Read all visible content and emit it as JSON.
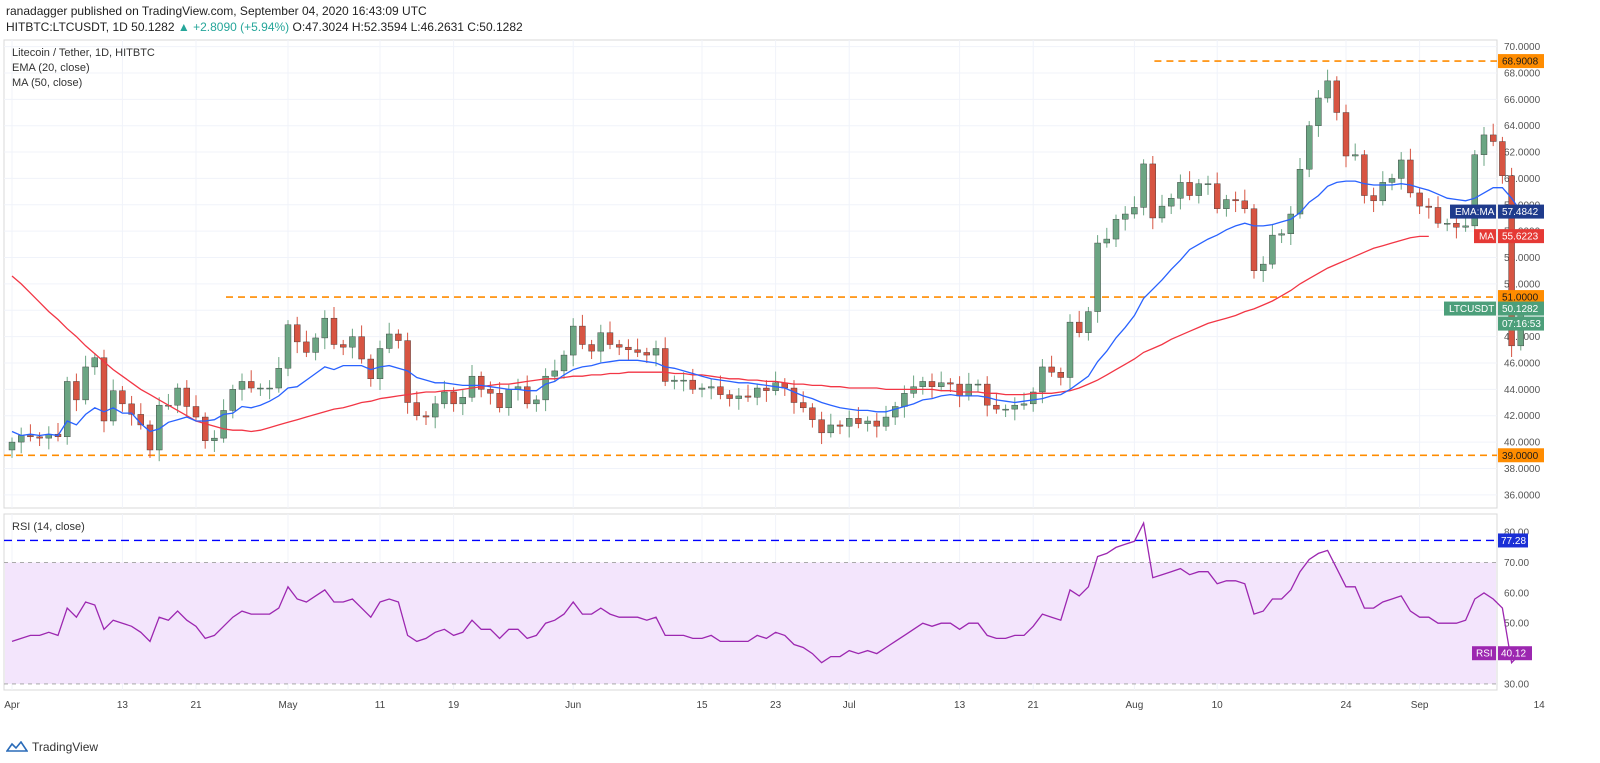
{
  "header": {
    "line1": "ranadagger published on TradingView.com, September 04, 2020 16:43:09 UTC",
    "symbol": "HITBTC:LTCUSDT, 1D",
    "last": "50.1282",
    "change": "▲ +2.8090 (+5.94%)",
    "ohlc": "O:47.3024 H:52.3594 L:46.2631 C:50.1282"
  },
  "footer": {
    "brand": "TradingView"
  },
  "chart_data": [
    {
      "type": "candlestick",
      "title": "Litecoin / Tether, 1D, HITBTC",
      "indicators": [
        "EMA (20, close)",
        "MA (50, close)"
      ],
      "ylim": [
        35,
        70.5
      ],
      "y_ticks": [
        36,
        38,
        40,
        42,
        44,
        46,
        48,
        50,
        52,
        54,
        56,
        58,
        60,
        62,
        64,
        66,
        68,
        70
      ],
      "x_ticks": [
        {
          "label": "Apr",
          "day": 0
        },
        {
          "label": "13",
          "day": 12
        },
        {
          "label": "21",
          "day": 20
        },
        {
          "label": "May",
          "day": 30
        },
        {
          "label": "11",
          "day": 40
        },
        {
          "label": "19",
          "day": 48
        },
        {
          "label": "Jun",
          "day": 61
        },
        {
          "label": "15",
          "day": 75
        },
        {
          "label": "23",
          "day": 83
        },
        {
          "label": "Jul",
          "day": 91
        },
        {
          "label": "13",
          "day": 103
        },
        {
          "label": "21",
          "day": 111
        },
        {
          "label": "Aug",
          "day": 122
        },
        {
          "label": "10",
          "day": 131
        },
        {
          "label": "24",
          "day": 145
        },
        {
          "label": "Sep",
          "day": 153
        },
        {
          "label": "14",
          "day": 166
        }
      ],
      "start_close": 39.4,
      "closes": [
        40.0,
        40.5,
        40.4,
        40.3,
        40.6,
        40.4,
        44.6,
        43.2,
        45.7,
        46.4,
        41.6,
        43.9,
        42.9,
        42.1,
        41.3,
        39.4,
        42.8,
        42.8,
        44.1,
        42.7,
        41.9,
        40.1,
        40.3,
        42.4,
        44.0,
        44.6,
        44.1,
        44.1,
        44.1,
        45.6,
        48.9,
        47.6,
        46.8,
        47.9,
        49.4,
        47.4,
        47.2,
        48.0,
        46.3,
        44.8,
        47.1,
        48.2,
        47.7,
        43.0,
        42.0,
        41.9,
        42.9,
        43.8,
        42.9,
        43.4,
        45.0,
        44.0,
        43.7,
        42.6,
        44.0,
        44.2,
        42.9,
        43.2,
        45.0,
        45.4,
        46.6,
        48.8,
        47.4,
        46.9,
        48.3,
        47.4,
        47.2,
        47.0,
        46.8,
        46.6,
        47.1,
        44.6,
        44.7,
        44.7,
        44.0,
        44.1,
        44.2,
        43.6,
        43.3,
        43.5,
        43.4,
        44.1,
        43.9,
        44.5,
        44.1,
        43.0,
        42.6,
        41.7,
        40.7,
        41.3,
        41.2,
        41.8,
        41.4,
        41.6,
        41.2,
        41.9,
        42.7,
        43.7,
        44.2,
        44.6,
        44.2,
        44.5,
        44.4,
        43.5,
        44.4,
        44.4,
        42.8,
        42.5,
        42.5,
        42.8,
        42.9,
        43.8,
        45.7,
        45.3,
        44.9,
        49.1,
        48.3,
        49.9,
        55.1,
        55.4,
        56.9,
        57.3,
        57.8,
        61.1,
        57.0,
        57.9,
        58.5,
        59.7,
        58.7,
        59.6,
        59.6,
        57.7,
        58.4,
        58.3,
        57.7,
        53.0,
        53.5,
        55.7,
        55.8,
        57.3,
        60.7,
        64.0,
        66.1,
        67.4,
        65.0,
        61.7,
        61.8,
        58.7,
        58.3,
        59.7,
        60.0,
        61.4,
        58.9,
        57.9,
        57.8,
        56.6,
        56.6,
        56.3,
        56.4,
        61.8,
        63.3,
        62.8,
        60.2,
        47.3,
        50.1
      ],
      "ema_20": [
        40.8,
        40.5,
        40.6,
        40.5,
        40.6,
        40.5,
        41.6,
        41.3,
        42.1,
        42.6,
        42.3,
        42.6,
        42.2,
        42.2,
        41.4,
        40.8,
        41.0,
        41.5,
        41.7,
        41.9,
        41.6,
        41.6,
        41.7,
        42.1,
        42.2,
        42.7,
        42.6,
        42.8,
        43.1,
        43.5,
        44.1,
        44.2,
        44.7,
        45.2,
        45.7,
        45.5,
        45.8,
        45.8,
        45.8,
        45.5,
        45.7,
        45.8,
        45.6,
        45.4,
        44.9,
        44.7,
        44.5,
        44.5,
        44.4,
        44.3,
        44.3,
        44.3,
        44.2,
        44.1,
        44.0,
        44.0,
        43.9,
        43.9,
        44.4,
        44.6,
        45.1,
        45.5,
        45.7,
        45.8,
        46.0,
        46.1,
        46.2,
        46.2,
        46.2,
        46.1,
        46.0,
        45.7,
        45.6,
        45.4,
        45.2,
        45.0,
        44.8,
        44.7,
        44.6,
        44.5,
        44.5,
        44.4,
        44.3,
        44.2,
        44.1,
        43.8,
        43.5,
        43.3,
        43.0,
        42.8,
        42.6,
        42.5,
        42.4,
        42.4,
        42.3,
        42.3,
        42.5,
        42.7,
        42.9,
        43.2,
        43.3,
        43.5,
        43.6,
        43.5,
        43.5,
        43.5,
        43.4,
        43.2,
        43.1,
        43.0,
        43.1,
        43.2,
        43.3,
        43.5,
        43.6,
        44.0,
        44.5,
        45.0,
        46.1,
        46.9,
        47.9,
        48.7,
        49.6,
        50.9,
        51.6,
        52.3,
        53.1,
        53.8,
        54.6,
        55.0,
        55.4,
        55.7,
        56.1,
        56.4,
        56.6,
        56.4,
        56.4,
        56.5,
        56.7,
        56.9,
        57.4,
        58.2,
        58.7,
        59.4,
        59.7,
        59.8,
        59.8,
        59.6,
        59.5,
        59.5,
        59.5,
        59.6,
        59.5,
        59.3,
        59.1,
        58.8,
        58.5,
        58.4,
        58.3,
        58.5,
        58.9,
        59.3,
        59.3,
        58.5,
        57.5
      ],
      "ma_50": [
        52.6,
        52.0,
        51.3,
        50.6,
        49.9,
        49.3,
        48.6,
        48.0,
        47.3,
        46.7,
        46.1,
        45.5,
        45.0,
        44.5,
        44.0,
        43.6,
        43.2,
        42.8,
        42.4,
        42.0,
        41.6,
        41.4,
        41.2,
        41.0,
        40.9,
        40.9,
        40.8,
        40.9,
        41.1,
        41.3,
        41.5,
        41.7,
        41.9,
        42.1,
        42.3,
        42.5,
        42.6,
        42.8,
        43.0,
        43.1,
        43.3,
        43.4,
        43.5,
        43.6,
        43.7,
        43.8,
        43.8,
        43.9,
        43.9,
        44.0,
        44.1,
        44.2,
        44.3,
        44.4,
        44.4,
        44.5,
        44.6,
        44.7,
        44.8,
        44.8,
        44.9,
        45.0,
        45.0,
        45.1,
        45.1,
        45.2,
        45.2,
        45.3,
        45.3,
        45.3,
        45.3,
        45.3,
        45.2,
        45.2,
        45.1,
        45.1,
        45.0,
        44.9,
        44.8,
        44.8,
        44.7,
        44.7,
        44.6,
        44.6,
        44.5,
        44.4,
        44.4,
        44.3,
        44.3,
        44.2,
        44.2,
        44.1,
        44.1,
        44.1,
        44.1,
        44.0,
        44.0,
        44.0,
        44.0,
        44.0,
        44.0,
        43.9,
        43.9,
        43.8,
        43.8,
        43.8,
        43.7,
        43.7,
        43.6,
        43.6,
        43.6,
        43.7,
        43.7,
        43.7,
        43.8,
        43.9,
        44.1,
        44.4,
        44.7,
        45.1,
        45.5,
        45.9,
        46.3,
        46.8,
        47.1,
        47.4,
        47.8,
        48.1,
        48.4,
        48.7,
        49.0,
        49.2,
        49.4,
        49.6,
        49.9,
        50.1,
        50.4,
        50.7,
        51.1,
        51.5,
        52.0,
        52.4,
        52.8,
        53.2,
        53.5,
        53.8,
        54.1,
        54.4,
        54.7,
        54.9,
        55.1,
        55.3,
        55.5,
        55.6,
        55.6
      ],
      "horizontal_levels": [
        {
          "value": 68.9008,
          "label": "68.9008"
        },
        {
          "value": 51.0,
          "label": "51.0000"
        },
        {
          "value": 39.0,
          "label": "39.0000"
        }
      ],
      "price_labels": [
        {
          "text": "EMA:MA",
          "value": "57.4842",
          "color": "#1f3b8c"
        },
        {
          "text": "MA",
          "value": "55.6223",
          "color": "#e53935"
        },
        {
          "text": "LTCUSDT",
          "value": "50.1282",
          "color": "#4c9f7a"
        },
        {
          "text": "",
          "value": "07:16:53",
          "color": "#4c9f7a"
        }
      ],
      "colors": {
        "up": "#6ba583",
        "down": "#d75442",
        "ema": "#2962ff",
        "ma": "#f23645",
        "level": "#ff8c00"
      }
    },
    {
      "type": "line",
      "title": "RSI (14, close)",
      "ylim": [
        28,
        86
      ],
      "y_ticks": [
        30,
        40,
        50,
        60,
        70,
        80
      ],
      "band": [
        30,
        70
      ],
      "level_line": {
        "value": 77.28,
        "label": "77.28"
      },
      "current": {
        "text": "RSI",
        "value": "40.12"
      },
      "values": [
        44,
        45,
        46,
        46,
        47,
        46,
        55,
        52,
        57,
        56,
        48,
        51,
        50,
        49,
        47,
        44,
        52,
        51,
        54,
        51,
        49,
        45,
        46,
        49,
        52,
        54,
        53,
        53,
        53,
        55,
        62,
        58,
        57,
        59,
        61,
        57,
        57,
        58,
        55,
        52,
        57,
        58,
        57,
        46,
        44,
        45,
        47,
        48,
        46,
        47,
        51,
        48,
        48,
        45,
        48,
        48,
        45,
        46,
        50,
        51,
        53,
        57,
        53,
        53,
        55,
        53,
        52,
        52,
        52,
        51,
        52,
        46,
        46,
        46,
        45,
        45,
        46,
        44,
        44,
        44,
        44,
        46,
        45,
        47,
        46,
        43,
        42,
        40,
        37,
        39,
        39,
        41,
        40,
        41,
        40,
        42,
        44,
        46,
        48,
        50,
        49,
        50,
        50,
        48,
        50,
        50,
        46,
        45,
        45,
        46,
        46,
        49,
        53,
        52,
        51,
        61,
        59,
        62,
        72,
        73,
        75,
        76,
        77,
        83,
        65,
        66,
        67,
        68,
        66,
        67,
        67,
        63,
        64,
        64,
        63,
        53,
        54,
        58,
        58,
        61,
        67,
        71,
        73,
        74,
        68,
        62,
        62,
        55,
        55,
        57,
        58,
        59,
        54,
        52,
        52,
        50,
        50,
        50,
        51,
        58,
        60,
        58,
        55,
        37,
        40.12
      ],
      "colors": {
        "line": "#9c27b0",
        "band": "#f3e5fc",
        "level": "#0000ff"
      }
    }
  ]
}
